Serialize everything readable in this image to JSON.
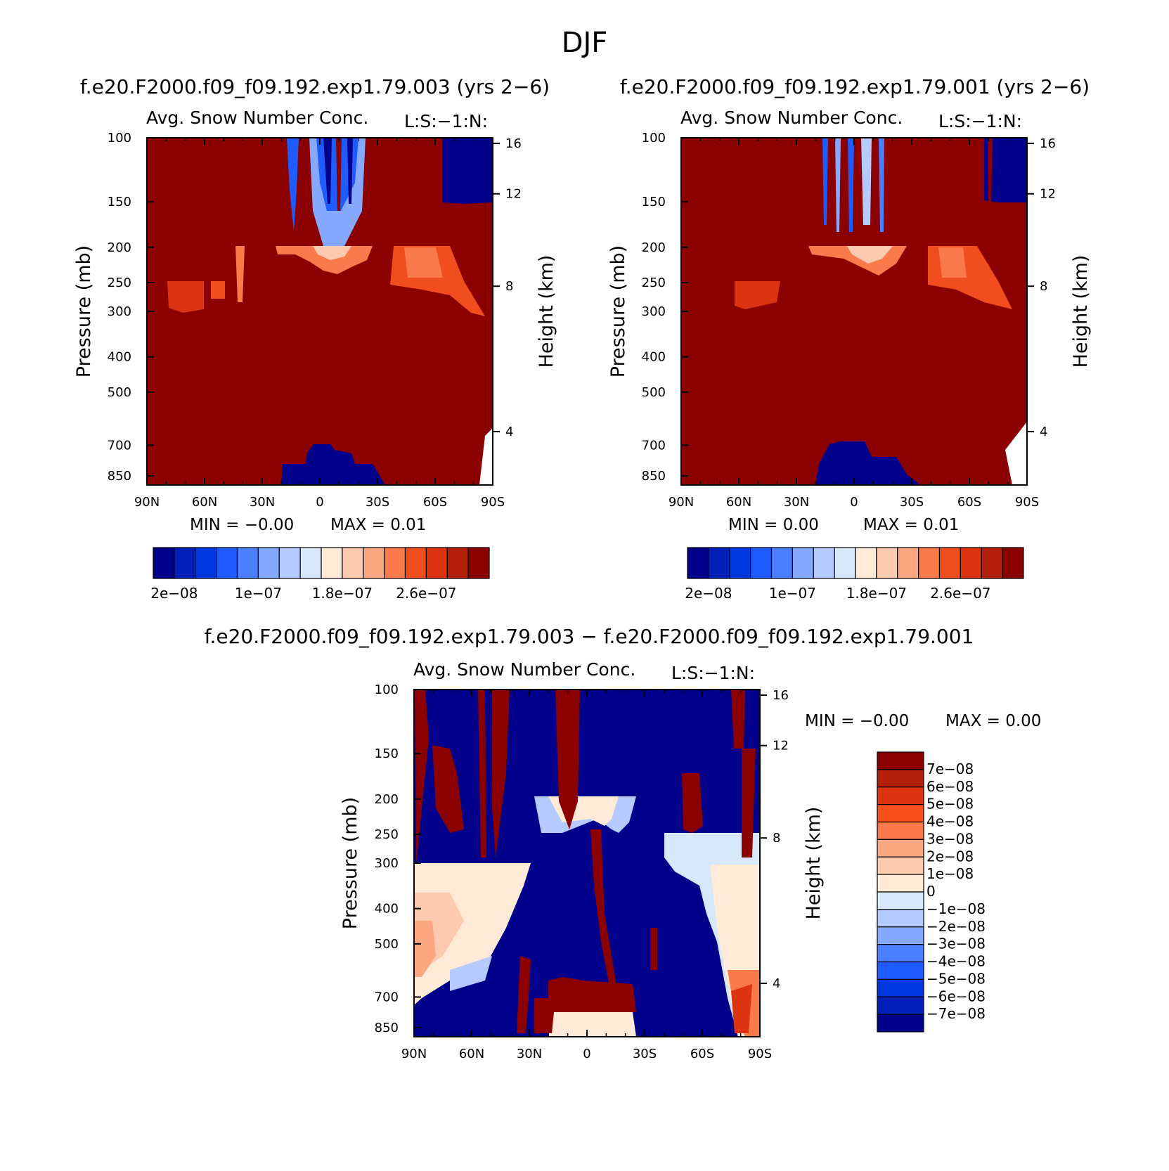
{
  "page_title": "DJF",
  "chart_data": [
    {
      "type": "heatmap",
      "case_title": "f.e20.F2000.f09_f09.192.exp1.79.003 (yrs 2−6)",
      "subtitle": "Avg. Snow Number Conc.",
      "level_tag": "L:S:−1:N:",
      "xlabel": "",
      "ylabel": "Pressure (mb)",
      "ylabel_right": "Height (km)",
      "x_ticks": [
        "90N",
        "60N",
        "30N",
        "0",
        "30S",
        "60S",
        "90S"
      ],
      "xlim": [
        90,
        -90
      ],
      "y_ticks": [
        "100",
        "150",
        "200",
        "250",
        "300",
        "400",
        "500",
        "700",
        "850"
      ],
      "ylim": [
        100,
        1000
      ],
      "right_ticks": [
        "16",
        "12",
        "8",
        "4"
      ],
      "min_text": "MIN =   −0.00",
      "max_text": "MAX =    0.01",
      "colorbar_labels": [
        "2e−08",
        "1e−07",
        "1.8e−07",
        "2.6e−07"
      ],
      "colors": [
        "#00008b",
        "#0020b8",
        "#0038e0",
        "#1f5cff",
        "#4a80ff",
        "#86a9ff",
        "#b5cbff",
        "#d8e8fb",
        "#feead6",
        "#fdcab0",
        "#fca682",
        "#fa7a4b",
        "#f04e1e",
        "#dc3411",
        "#b22009",
        "#8b0000"
      ],
      "background_color": "#8b0000",
      "feature_color": "#00008b"
    },
    {
      "type": "heatmap",
      "case_title": "f.e20.F2000.f09_f09.192.exp1.79.001 (yrs 2−6)",
      "subtitle": "Avg. Snow Number Conc.",
      "level_tag": "L:S:−1:N:",
      "xlabel": "",
      "ylabel": "Pressure (mb)",
      "ylabel_right": "Height (km)",
      "x_ticks": [
        "90N",
        "60N",
        "30N",
        "0",
        "30S",
        "60S",
        "90S"
      ],
      "xlim": [
        90,
        -90
      ],
      "y_ticks": [
        "100",
        "150",
        "200",
        "250",
        "300",
        "400",
        "500",
        "700",
        "850"
      ],
      "ylim": [
        100,
        1000
      ],
      "right_ticks": [
        "16",
        "12",
        "8",
        "4"
      ],
      "min_text": "MIN =    0.00",
      "max_text": "MAX =    0.01",
      "colorbar_labels": [
        "2e−08",
        "1e−07",
        "1.8e−07",
        "2.6e−07"
      ],
      "colors": [
        "#00008b",
        "#0020b8",
        "#0038e0",
        "#1f5cff",
        "#4a80ff",
        "#86a9ff",
        "#b5cbff",
        "#d8e8fb",
        "#feead6",
        "#fdcab0",
        "#fca682",
        "#fa7a4b",
        "#f04e1e",
        "#dc3411",
        "#b22009",
        "#8b0000"
      ],
      "background_color": "#8b0000",
      "feature_color": "#00008b"
    },
    {
      "type": "heatmap",
      "case_title": "f.e20.F2000.f09_f09.192.exp1.79.003 − f.e20.F2000.f09_f09.192.exp1.79.001",
      "subtitle": "Avg. Snow Number Conc.",
      "level_tag": "L:S:−1:N:",
      "xlabel": "",
      "ylabel": "Pressure (mb)",
      "ylabel_right": "Height (km)",
      "x_ticks": [
        "90N",
        "60N",
        "30N",
        "0",
        "30S",
        "60S",
        "90S"
      ],
      "xlim": [
        90,
        -90
      ],
      "y_ticks": [
        "100",
        "150",
        "200",
        "250",
        "300",
        "400",
        "500",
        "700",
        "850"
      ],
      "ylim": [
        100,
        1000
      ],
      "right_ticks": [
        "16",
        "12",
        "8",
        "4"
      ],
      "min_text": "MIN =   −0.00",
      "max_text": "MAX =    0.00",
      "colorbar_labels": [
        "7e−08",
        "6e−08",
        "5e−08",
        "4e−08",
        "3e−08",
        "2e−08",
        "1e−08",
        "0",
        "−1e−08",
        "−2e−08",
        "−3e−08",
        "−4e−08",
        "−5e−08",
        "−6e−08",
        "−7e−08"
      ],
      "colors": [
        "#8b0000",
        "#b22009",
        "#dc3411",
        "#fa5020",
        "#fc7a4a",
        "#fca682",
        "#fdcab0",
        "#feead6",
        "#d8e8fb",
        "#b5cbff",
        "#86a9ff",
        "#4a80ff",
        "#1f5cff",
        "#0038e0",
        "#0020b8",
        "#00008b"
      ],
      "background_color": "#00008b",
      "feature_color": "#8b0000"
    }
  ]
}
